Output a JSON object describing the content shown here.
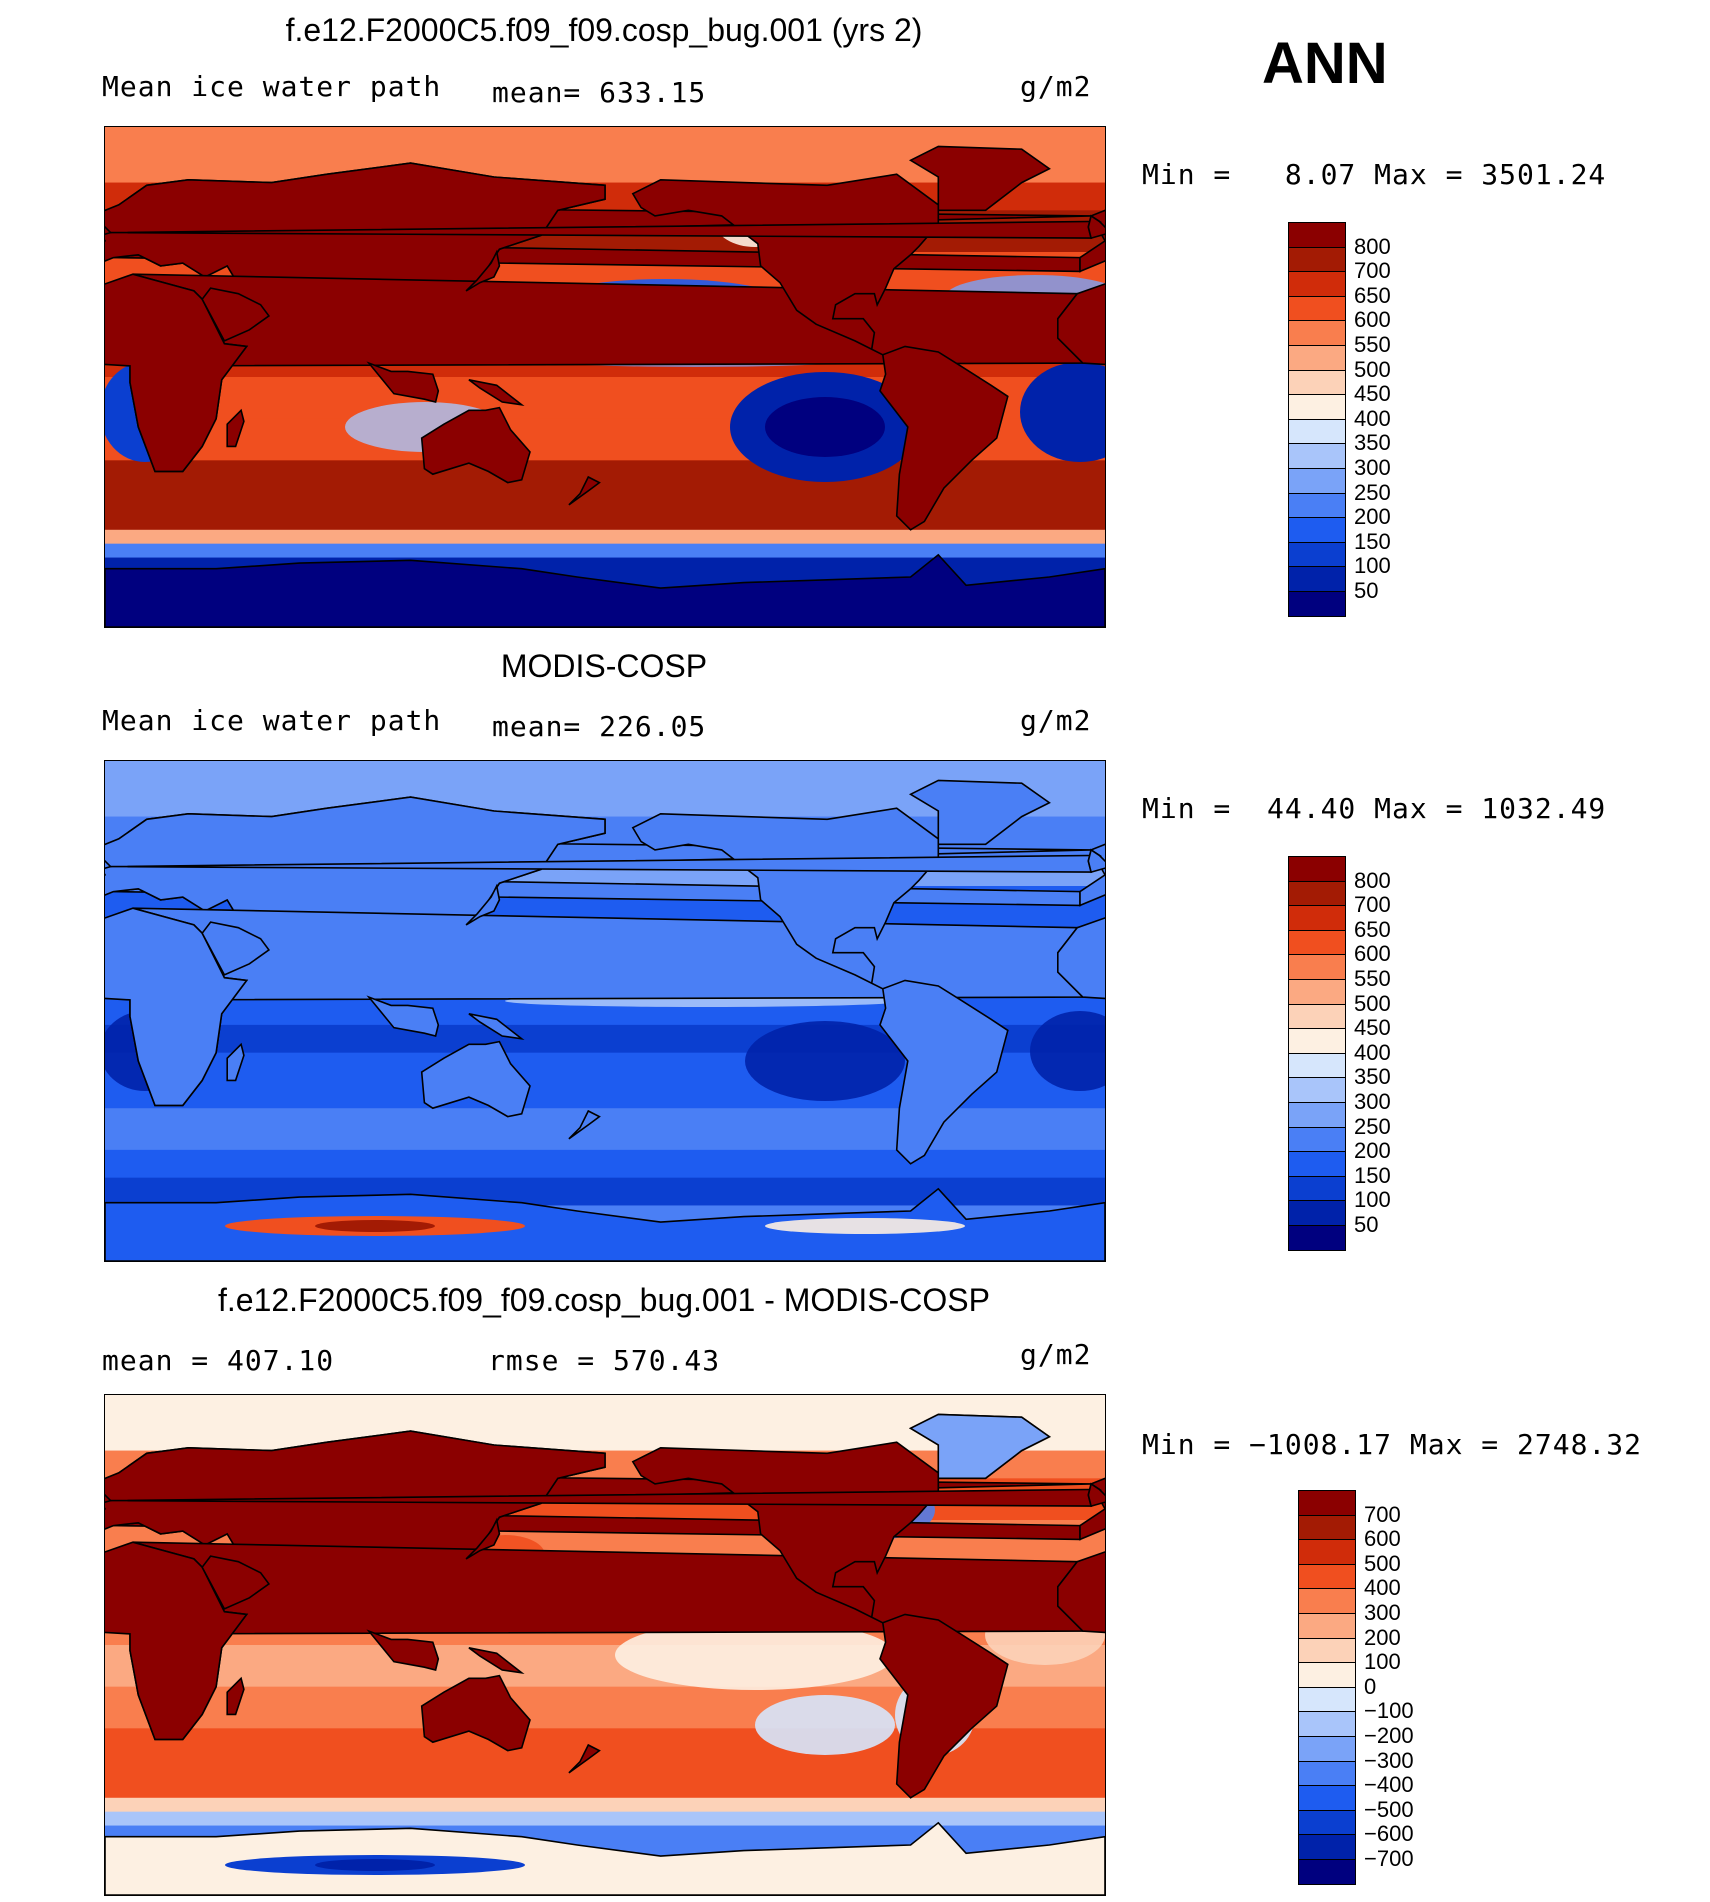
{
  "season": "ANN",
  "colors": {
    "scale": [
      "#00007f",
      "#0022aa",
      "#0b3fd0",
      "#1e5cf0",
      "#4a7ff5",
      "#7aa3f8",
      "#a9c5fa",
      "#d6e6fc",
      "#fdf0e2",
      "#fcd2b8",
      "#fba982",
      "#f97e4e",
      "#f04f1f",
      "#d02c0a",
      "#a31b04",
      "#8b0000"
    ],
    "coast": "#000000"
  },
  "panels": [
    {
      "title": "f.e12.F2000C5.f09_f09.cosp_bug.001 (yrs 2)",
      "left_label": "Mean ice water path",
      "center_label": "mean= 633.15",
      "units": "g/m2",
      "stats": "Min =   8.07 Max = 3501.24",
      "colorbar": [
        "800",
        "700",
        "650",
        "600",
        "550",
        "500",
        "450",
        "400",
        "350",
        "300",
        "250",
        "200",
        "150",
        "100",
        "50"
      ],
      "field": "model"
    },
    {
      "title": "MODIS-COSP",
      "left_label": "Mean ice water path",
      "center_label": "mean= 226.05",
      "units": "g/m2",
      "stats": "Min =  44.40 Max = 1032.49",
      "colorbar": [
        "800",
        "700",
        "650",
        "600",
        "550",
        "500",
        "450",
        "400",
        "350",
        "300",
        "250",
        "200",
        "150",
        "100",
        "50"
      ],
      "field": "obs"
    },
    {
      "title": "f.e12.F2000C5.f09_f09.cosp_bug.001 - MODIS-COSP",
      "left_label": "mean = 407.10",
      "center_label": "rmse = 570.43",
      "units": "g/m2",
      "stats": "Min = −1008.17 Max = 2748.32",
      "colorbar": [
        "700",
        "600",
        "500",
        "400",
        "300",
        "200",
        "100",
        "0",
        "−100",
        "−200",
        "−300",
        "−400",
        "−500",
        "−600",
        "−700"
      ],
      "field": "diff"
    }
  ]
}
